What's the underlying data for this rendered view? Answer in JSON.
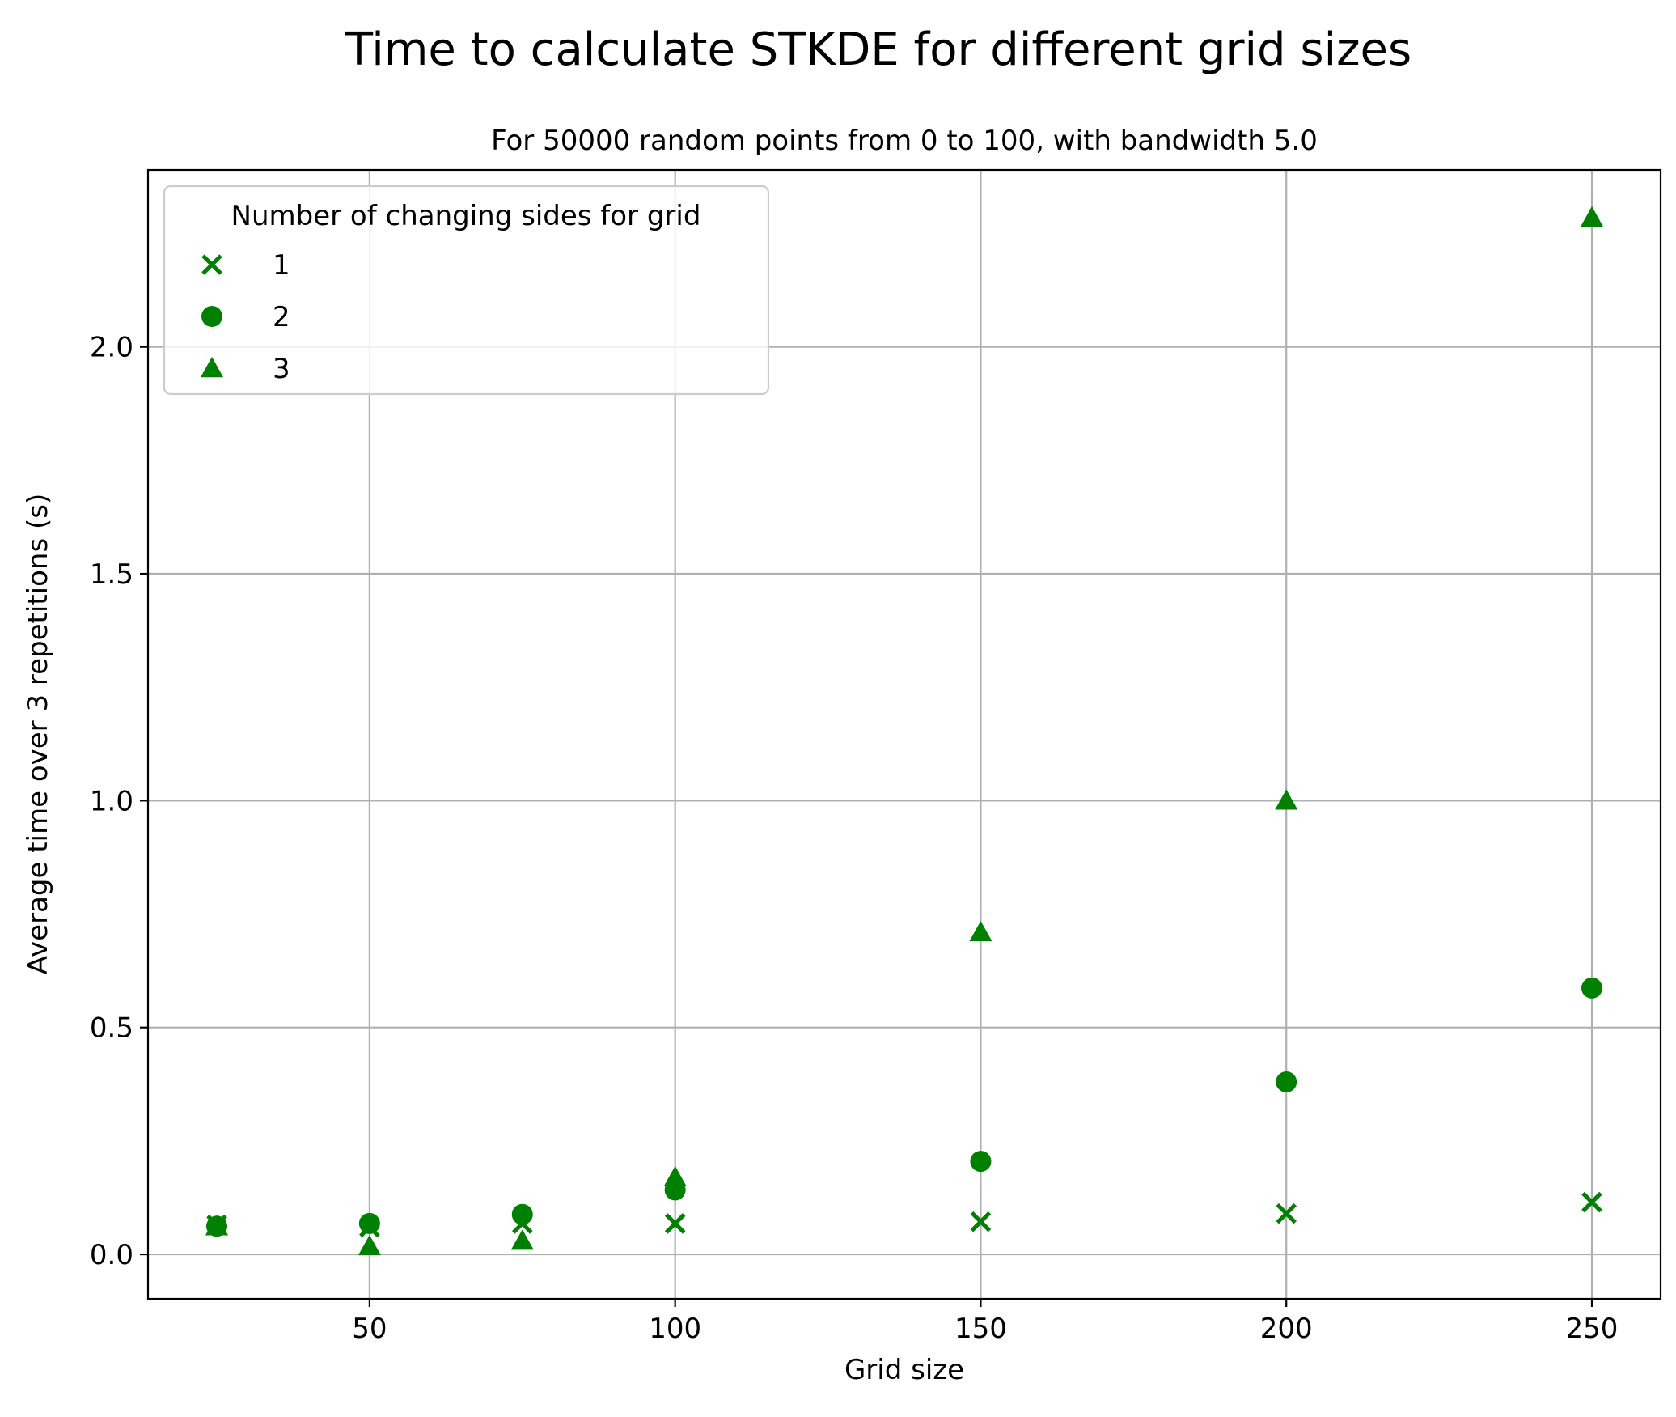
{
  "chart_data": {
    "type": "scatter",
    "title": "Time to calculate STKDE for different grid sizes",
    "subtitle": "For 50000 random points from 0 to 100, with bandwidth 5.0",
    "xlabel": "Grid size",
    "ylabel": "Average time over 3 repetitions (s)",
    "xlim": [
      13.75,
      261.25
    ],
    "ylim": [
      -0.098,
      2.39
    ],
    "xticks": [
      50,
      100,
      150,
      200,
      250
    ],
    "yticks": [
      0.0,
      0.5,
      1.0,
      1.5,
      2.0
    ],
    "xtick_labels": [
      "50",
      "100",
      "150",
      "200",
      "250"
    ],
    "ytick_labels": [
      "0.0",
      "0.5",
      "1.0",
      "1.5",
      "2.0"
    ],
    "grid": true,
    "legend": {
      "title": "Number of changing sides for grid",
      "placement": "upper-left"
    },
    "color": "#008000",
    "series": [
      {
        "name": "1",
        "marker": "x",
        "x": [
          25,
          50,
          75,
          100,
          150,
          200,
          250
        ],
        "y": [
          0.065,
          0.06,
          0.068,
          0.068,
          0.072,
          0.09,
          0.115
        ]
      },
      {
        "name": "2",
        "marker": "circle",
        "x": [
          25,
          50,
          75,
          100,
          150,
          200,
          250
        ],
        "y": [
          0.062,
          0.068,
          0.088,
          0.142,
          0.205,
          0.38,
          0.587
        ]
      },
      {
        "name": "3",
        "marker": "triangle",
        "x": [
          25,
          50,
          75,
          100,
          150,
          200,
          250
        ],
        "y": [
          0.062,
          0.018,
          0.03,
          0.17,
          0.71,
          1.0,
          2.285
        ]
      }
    ]
  }
}
